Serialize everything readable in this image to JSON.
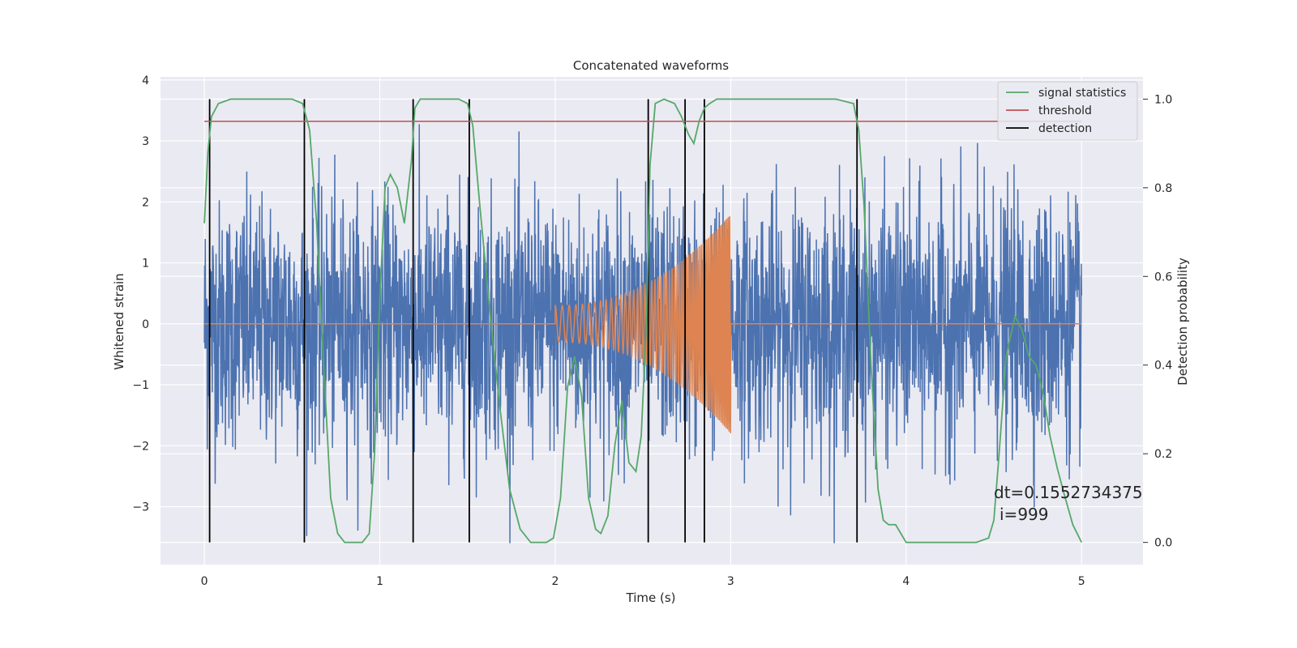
{
  "chart_data": {
    "type": "line",
    "title": "Concatenated waveforms",
    "xlabel": "Time (s)",
    "ylabel": "Whitened strain",
    "y2label": "Detection probability",
    "xlim": [
      -0.25,
      5.35
    ],
    "ylim": [
      -3.95,
      4.05
    ],
    "y2lim": [
      -0.05,
      1.05
    ],
    "x_ticks": [
      0,
      1,
      2,
      3,
      4,
      5
    ],
    "y_ticks": [
      -3,
      -2,
      -1,
      0,
      1,
      2,
      3,
      4
    ],
    "y2_ticks": [
      0.0,
      0.2,
      0.4,
      0.6,
      0.8,
      1.0
    ],
    "x_tick_labels": [
      "0",
      "1",
      "2",
      "3",
      "4",
      "5"
    ],
    "y_tick_labels": [
      "−3",
      "−2",
      "−1",
      "0",
      "1",
      "2",
      "3",
      "4"
    ],
    "y2_tick_labels": [
      "0.0",
      "0.2",
      "0.4",
      "0.6",
      "0.8",
      "1.0"
    ],
    "grid": true,
    "legend_position": "top-right",
    "legend": [
      "signal statistics",
      "threshold",
      "detection"
    ],
    "colors": {
      "background": "#eaeaf2",
      "grid": "#ffffff",
      "noise": "#4c72b0",
      "waveform": "#dd8452",
      "signal_statistics": "#55a868",
      "threshold": "#c44e52",
      "detection": "#000000"
    },
    "noise_series": {
      "description_visible": false,
      "x_range": [
        0,
        5
      ],
      "typical_amplitude": 1.0,
      "extremes": [
        -3.6,
        3.7
      ]
    },
    "waveform_series": {
      "x_range": [
        2.0,
        3.0
      ],
      "start_amplitude": 0.3,
      "end_amplitude": 1.8,
      "start_frequency_hz": 25,
      "end_frequency_hz": 120
    },
    "threshold": 0.95,
    "detections": [
      0.03,
      0.57,
      1.19,
      1.51,
      2.53,
      2.74,
      2.85,
      3.72
    ],
    "signal_statistics": {
      "x": [
        0.0,
        0.02,
        0.04,
        0.08,
        0.15,
        0.3,
        0.5,
        0.56,
        0.6,
        0.64,
        0.68,
        0.72,
        0.76,
        0.8,
        0.9,
        0.94,
        0.97,
        1.0,
        1.03,
        1.06,
        1.1,
        1.14,
        1.18,
        1.2,
        1.23,
        1.27,
        1.35,
        1.45,
        1.5,
        1.53,
        1.57,
        1.62,
        1.68,
        1.74,
        1.8,
        1.86,
        1.9,
        1.95,
        1.99,
        2.03,
        2.07,
        2.11,
        2.15,
        2.19,
        2.23,
        2.26,
        2.3,
        2.34,
        2.38,
        2.42,
        2.46,
        2.49,
        2.52,
        2.54,
        2.57,
        2.62,
        2.68,
        2.72,
        2.76,
        2.79,
        2.82,
        2.85,
        2.88,
        2.92,
        3.0,
        3.3,
        3.6,
        3.7,
        3.73,
        3.76,
        3.8,
        3.84,
        3.87,
        3.9,
        3.94,
        4.0,
        4.2,
        4.4,
        4.47,
        4.5,
        4.53,
        4.57,
        4.62,
        4.66,
        4.7,
        4.74,
        4.78,
        4.82,
        4.86,
        4.9,
        4.95,
        5.0
      ],
      "y": [
        0.72,
        0.88,
        0.96,
        0.99,
        1.0,
        1.0,
        1.0,
        0.99,
        0.93,
        0.72,
        0.4,
        0.1,
        0.02,
        0.0,
        0.0,
        0.02,
        0.2,
        0.55,
        0.8,
        0.83,
        0.8,
        0.72,
        0.86,
        0.98,
        1.0,
        1.0,
        1.0,
        1.0,
        0.99,
        0.94,
        0.76,
        0.55,
        0.32,
        0.12,
        0.03,
        0.0,
        0.0,
        0.0,
        0.01,
        0.1,
        0.35,
        0.42,
        0.33,
        0.1,
        0.03,
        0.02,
        0.06,
        0.22,
        0.32,
        0.18,
        0.16,
        0.24,
        0.5,
        0.85,
        0.99,
        1.0,
        0.99,
        0.96,
        0.92,
        0.9,
        0.95,
        0.98,
        0.99,
        1.0,
        1.0,
        1.0,
        1.0,
        0.99,
        0.93,
        0.76,
        0.4,
        0.12,
        0.05,
        0.04,
        0.04,
        0.0,
        0.0,
        0.0,
        0.01,
        0.05,
        0.2,
        0.42,
        0.51,
        0.48,
        0.42,
        0.4,
        0.34,
        0.24,
        0.17,
        0.11,
        0.04,
        0.0
      ]
    },
    "annotations": [
      "dt=0.1552734375",
      "i=999"
    ]
  }
}
